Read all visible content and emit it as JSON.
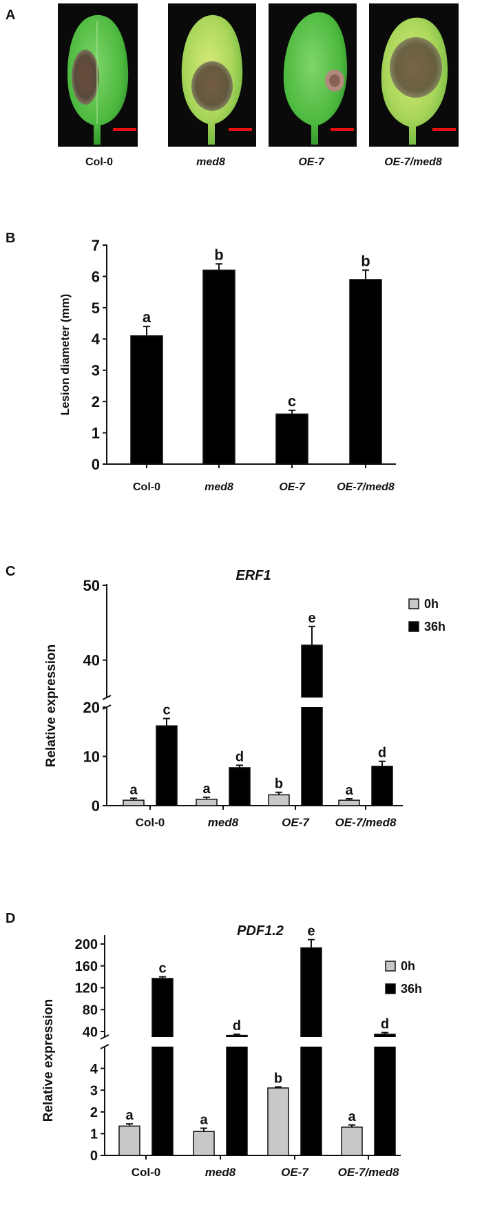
{
  "panel_a": {
    "label": "A",
    "photos": [
      {
        "caption": "Col-0",
        "italic": false
      },
      {
        "caption": "med8",
        "italic": true
      },
      {
        "caption": "OE-7",
        "italic": true
      },
      {
        "caption": "OE-7/med8",
        "italic": true
      }
    ],
    "scale_bar_color": "#e81010"
  },
  "chart_data": [
    {
      "panel": "B",
      "type": "bar",
      "title": "",
      "ylabel": "Lesion diameter (mm)",
      "categories": [
        "Col-0",
        "med8",
        "OE-7",
        "OE-7/med8"
      ],
      "category_italic": [
        false,
        true,
        true,
        true
      ],
      "series": [
        {
          "values": [
            4.1,
            6.2,
            1.6,
            5.9
          ],
          "errors": [
            0.3,
            0.2,
            0.12,
            0.3
          ],
          "significance": [
            "a",
            "b",
            "c",
            "b"
          ],
          "color": "#000000"
        }
      ],
      "ylim": [
        0,
        7
      ],
      "yticks": [
        "0",
        "1",
        "2",
        "3",
        "4",
        "5",
        "6",
        "7"
      ],
      "grid": false
    },
    {
      "panel": "C",
      "type": "bar",
      "title": "ERF1",
      "ylabel": "Relative expression",
      "categories": [
        "Col-0",
        "med8",
        "OE-7",
        "OE-7/med8"
      ],
      "category_italic": [
        false,
        true,
        true,
        true
      ],
      "series": [
        {
          "name": "0h",
          "values": [
            1.1,
            1.3,
            2.2,
            1.1
          ],
          "errors": [
            0.4,
            0.4,
            0.5,
            0.3
          ],
          "significance": [
            "a",
            "a",
            "b",
            "a"
          ],
          "color": "#c8c8c8"
        },
        {
          "name": "36h",
          "values": [
            16.2,
            7.7,
            42.0,
            8.0
          ],
          "errors": [
            1.5,
            0.5,
            2.5,
            1.0
          ],
          "significance": [
            "c",
            "d",
            "e",
            "d"
          ],
          "color": "#000000"
        }
      ],
      "y_axis_break": {
        "lower": [
          0,
          20
        ],
        "upper": [
          35,
          50
        ]
      },
      "yticks": [
        "0",
        "10",
        "20",
        "40",
        "50"
      ],
      "legend_position": "top-right",
      "grid": false
    },
    {
      "panel": "D",
      "type": "bar",
      "title": "PDF1.2",
      "ylabel": "Relative expression",
      "categories": [
        "Col-0",
        "med8",
        "OE-7",
        "OE-7/med8"
      ],
      "category_italic": [
        false,
        true,
        true,
        true
      ],
      "series": [
        {
          "name": "0h",
          "values": [
            1.35,
            1.1,
            3.1,
            1.3
          ],
          "errors": [
            0.1,
            0.15,
            0.05,
            0.1
          ],
          "significance": [
            "a",
            "a",
            "b",
            "a"
          ],
          "color": "#c8c8c8"
        },
        {
          "name": "36h",
          "values": [
            137,
            33,
            193,
            35
          ],
          "errors": [
            3,
            2,
            15,
            3
          ],
          "significance": [
            "c",
            "d",
            "e",
            "d"
          ],
          "color": "#000000"
        }
      ],
      "y_axis_break": {
        "lower": [
          0,
          5
        ],
        "upper": [
          30,
          210
        ]
      },
      "yticks": [
        "0",
        "1",
        "2",
        "3",
        "4",
        "40",
        "80",
        "120",
        "160",
        "200"
      ],
      "legend_position": "top-right",
      "grid": false
    }
  ]
}
